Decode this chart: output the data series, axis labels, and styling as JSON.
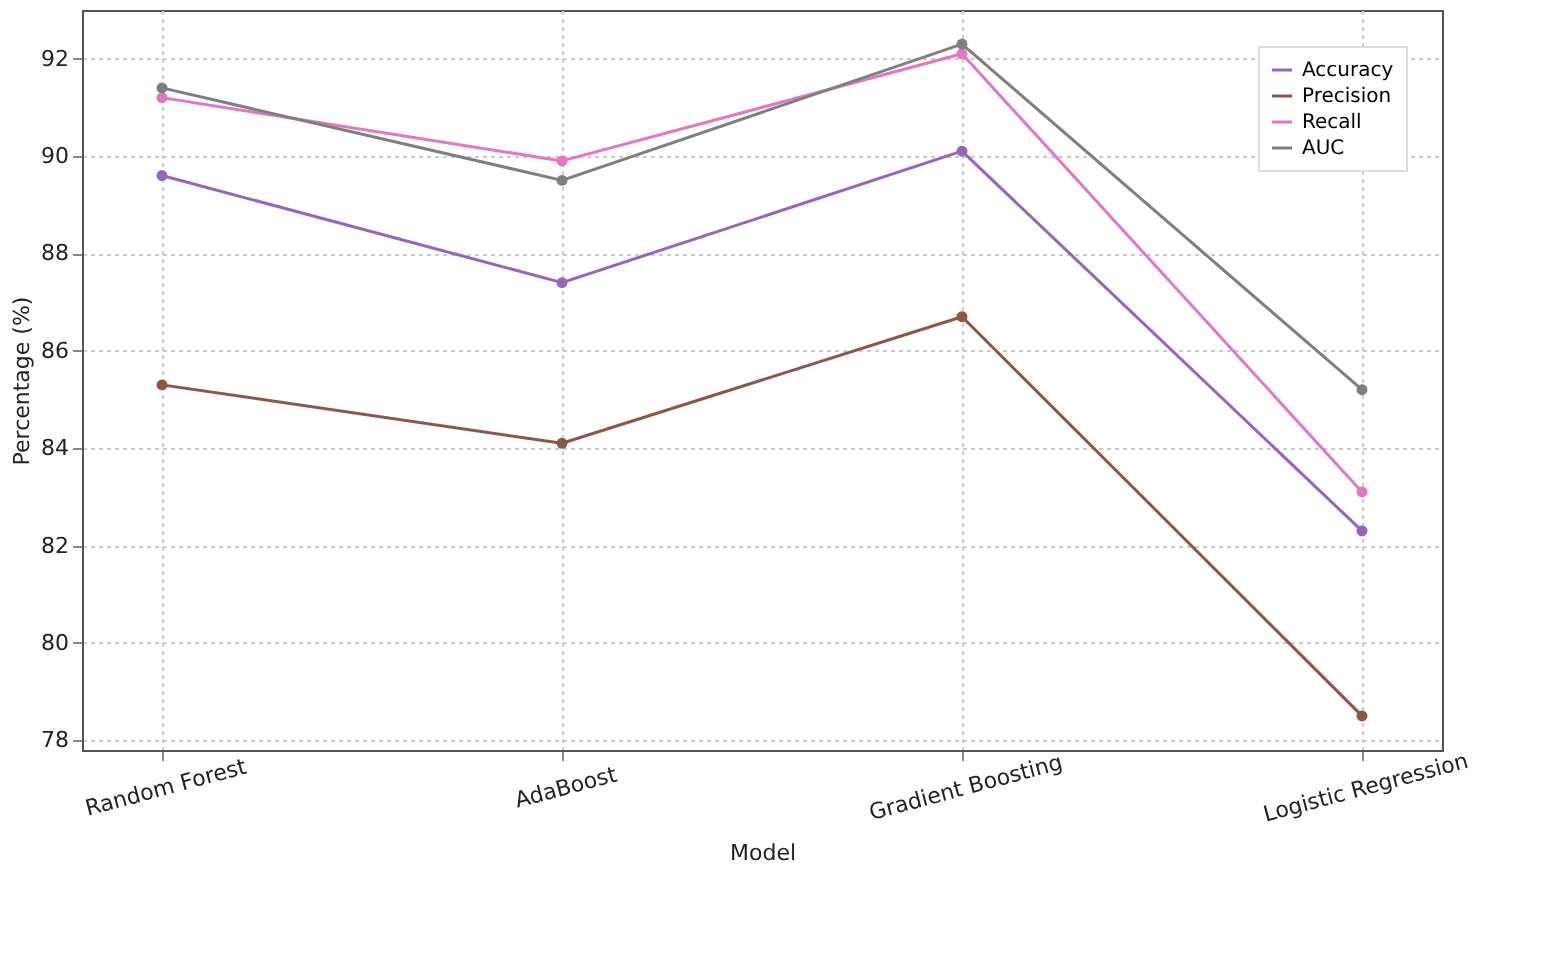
{
  "chart_data": {
    "type": "line",
    "xlabel": "Model",
    "ylabel": "Percentage (%)",
    "categories": [
      "Random Forest",
      "AdaBoost",
      "Gradient Boosting",
      "Logistic Regression"
    ],
    "series": [
      {
        "name": "Accuracy",
        "color": "#9467bd",
        "values": [
          89.6,
          87.4,
          90.1,
          82.3
        ]
      },
      {
        "name": "Precision",
        "color": "#8c564b",
        "values": [
          85.3,
          84.1,
          86.7,
          78.5
        ]
      },
      {
        "name": "Recall",
        "color": "#e377c2",
        "values": [
          91.2,
          89.9,
          92.1,
          83.1
        ]
      },
      {
        "name": "AUC",
        "color": "#7f7f7f",
        "values": [
          91.4,
          89.5,
          92.3,
          85.2
        ]
      }
    ],
    "ylim": [
      77.8,
      93.0
    ],
    "yticks": [
      78,
      80,
      82,
      84,
      86,
      88,
      90,
      92
    ],
    "grid": true,
    "legend": "top right",
    "marker": "circle",
    "line_style": "solid"
  }
}
